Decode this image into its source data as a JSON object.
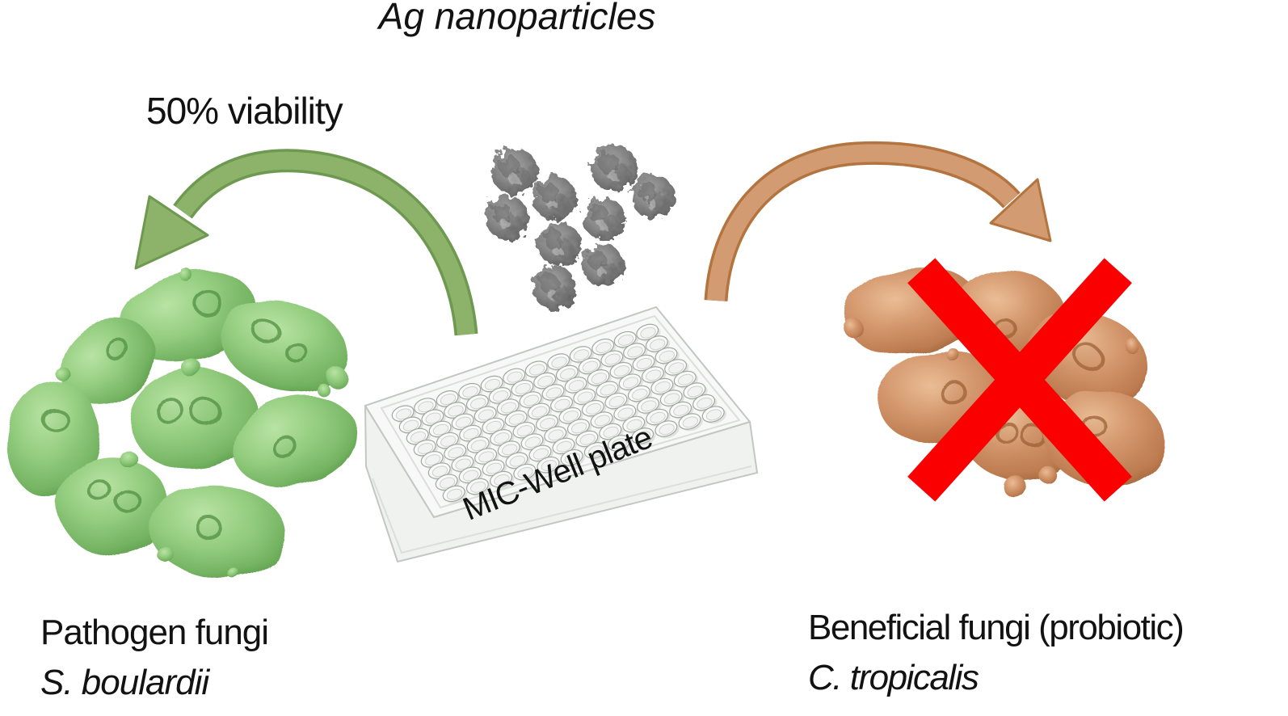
{
  "title": "Ag nanoparticles",
  "green_pathway": {
    "label": "50% viability"
  },
  "plate": {
    "label": "MIC-Well plate",
    "wells": {
      "rows": 8,
      "cols": 12
    }
  },
  "nanoparticles": {
    "count": 9
  },
  "left_caption": {
    "line1": "Pathogen fungi",
    "line2": "S. boulardii"
  },
  "right_caption": {
    "line1": "Beneficial fungi (probiotic)",
    "line2": "C. tropicalis"
  },
  "clusters": {
    "green_cells": 8,
    "orange_cells": 6
  },
  "colors": {
    "green_arrow": "#8CB369",
    "orange_arrow": "#D29B72",
    "red_cross": "#FB0000",
    "green_cell": "#94CD7F",
    "orange_cell": "#CD8D62",
    "nanoparticle_gray": "#7E7E7E",
    "text": "#121212"
  }
}
